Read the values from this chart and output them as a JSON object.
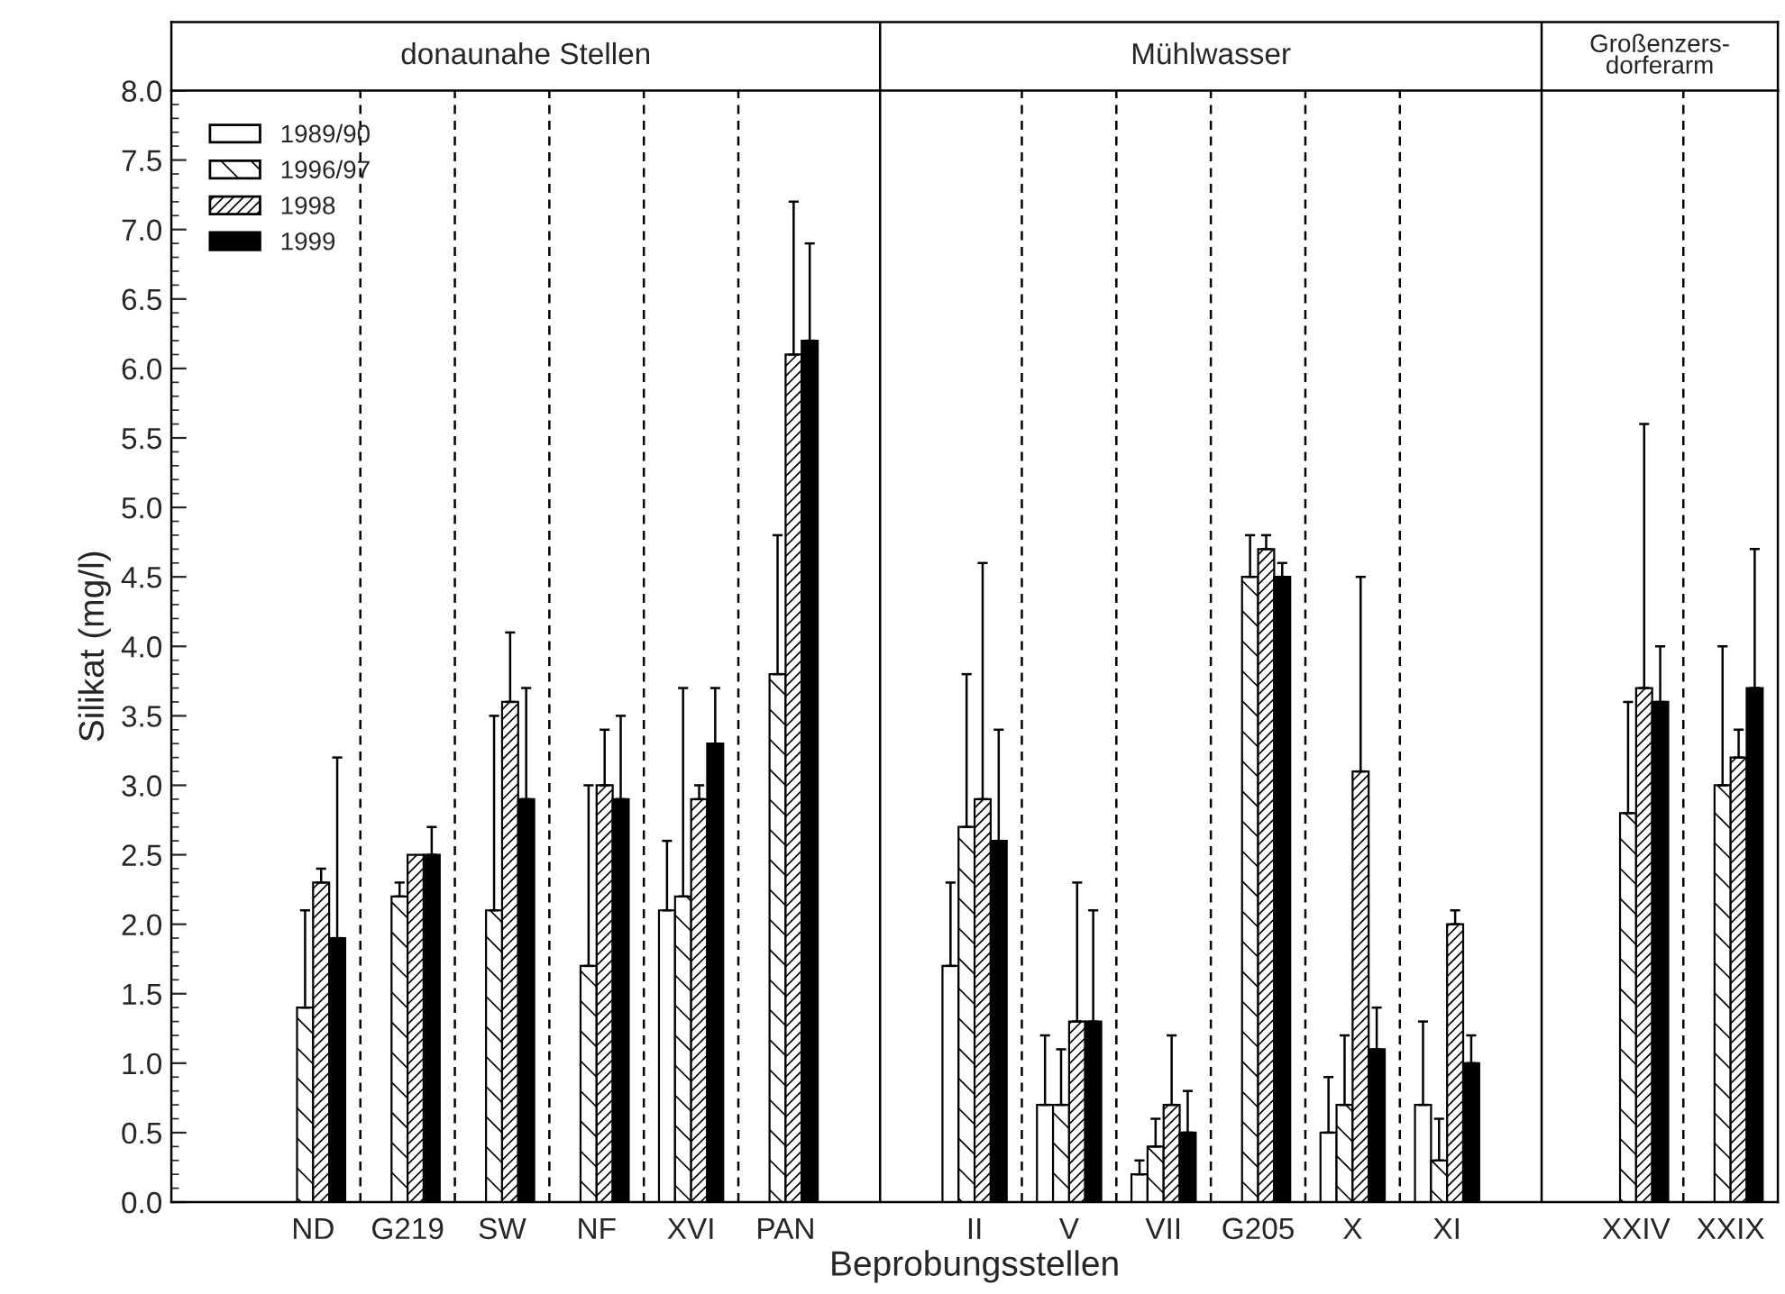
{
  "chart_data": {
    "type": "bar",
    "xlabel": "Beprobungsstellen",
    "ylabel": "Silikat (mg/l)",
    "categories": [
      null,
      "ND",
      "G219",
      "SW",
      "NF",
      "XVI",
      "PAN",
      null,
      "II",
      "V",
      "VII",
      "G205",
      "X",
      "XI",
      null,
      "XXIV",
      "XXIX"
    ],
    "series": [
      {
        "name": "1989/90",
        "color": "#ffffff",
        "values": [
          null,
          null,
          null,
          null,
          null,
          2.1,
          null,
          null,
          1.7,
          0.7,
          0.2,
          null,
          0.5,
          0.7,
          null,
          null,
          null
        ],
        "errors": [
          null,
          null,
          null,
          null,
          null,
          [
            2.1,
            2.6
          ],
          null,
          null,
          [
            1.7,
            2.3
          ],
          [
            0.7,
            1.2
          ],
          [
            0.2,
            0.3
          ],
          null,
          [
            0.5,
            0.9
          ],
          [
            0.7,
            1.3
          ],
          null,
          null,
          null
        ]
      },
      {
        "name": "1996/97",
        "color": "#ffffff",
        "values": [
          null,
          1.4,
          2.2,
          2.1,
          1.7,
          2.2,
          3.8,
          null,
          2.7,
          0.7,
          0.4,
          4.5,
          0.7,
          0.3,
          null,
          2.8,
          3.0
        ],
        "errors": [
          null,
          [
            1.4,
            2.1
          ],
          [
            2.2,
            2.3
          ],
          [
            2.1,
            3.5
          ],
          [
            1.7,
            3.0
          ],
          [
            2.2,
            3.7
          ],
          [
            3.8,
            4.8
          ],
          null,
          [
            2.7,
            3.8
          ],
          [
            0.7,
            1.1
          ],
          [
            0.4,
            0.6
          ],
          [
            4.5,
            4.8
          ],
          [
            0.7,
            1.2
          ],
          [
            0.3,
            0.6
          ],
          null,
          [
            2.8,
            3.6
          ],
          [
            3.0,
            4.0
          ]
        ]
      },
      {
        "name": "1998",
        "color": "#ffffff",
        "values": [
          null,
          2.3,
          2.5,
          3.6,
          3.0,
          2.9,
          6.1,
          null,
          2.9,
          1.3,
          0.7,
          4.7,
          3.1,
          2.0,
          null,
          3.7,
          3.2
        ],
        "errors": [
          null,
          [
            2.3,
            2.4
          ],
          null,
          [
            3.6,
            4.1
          ],
          [
            3.0,
            3.4
          ],
          [
            2.9,
            3.0
          ],
          [
            6.1,
            7.2
          ],
          null,
          [
            2.9,
            4.6
          ],
          [
            1.3,
            2.3
          ],
          [
            0.7,
            1.2
          ],
          [
            4.7,
            4.8
          ],
          [
            3.1,
            4.5
          ],
          [
            2.0,
            2.1
          ],
          null,
          [
            3.7,
            5.6
          ],
          [
            3.2,
            3.4
          ]
        ]
      },
      {
        "name": "1999",
        "color": "#000000",
        "values": [
          null,
          1.9,
          2.5,
          2.9,
          2.9,
          3.3,
          6.2,
          null,
          2.6,
          1.3,
          0.5,
          4.5,
          1.1,
          1.0,
          null,
          3.6,
          3.7
        ],
        "errors": [
          null,
          [
            1.9,
            3.2
          ],
          [
            2.5,
            2.7
          ],
          [
            2.9,
            3.7
          ],
          [
            2.9,
            3.5
          ],
          [
            3.3,
            3.7
          ],
          [
            6.2,
            6.9
          ],
          null,
          [
            2.6,
            3.4
          ],
          [
            1.3,
            2.1
          ],
          [
            0.5,
            0.8
          ],
          [
            4.5,
            4.6
          ],
          [
            1.1,
            1.4
          ],
          [
            1.0,
            1.2
          ],
          null,
          [
            3.6,
            4.0
          ],
          [
            3.7,
            4.7
          ]
        ]
      }
    ],
    "ylim": [
      0,
      8
    ],
    "yticks": [
      {
        "value": 0,
        "label": "0.0"
      },
      {
        "value": 0.5,
        "label": "0.5"
      },
      {
        "value": 1,
        "label": "1.0"
      },
      {
        "value": 1.5,
        "label": "1.5"
      },
      {
        "value": 2,
        "label": "2.0"
      },
      {
        "value": 2.5,
        "label": "2.5"
      },
      {
        "value": 3,
        "label": "3.0"
      },
      {
        "value": 3.5,
        "label": "3.5"
      },
      {
        "value": 4,
        "label": "4.0"
      },
      {
        "value": 4.5,
        "label": "4.5"
      },
      {
        "value": 5,
        "label": "5.0"
      },
      {
        "value": 5.5,
        "label": "5.5"
      },
      {
        "value": 6,
        "label": "6.0"
      },
      {
        "value": 6.5,
        "label": "6.5"
      },
      {
        "value": 7,
        "label": "7.0"
      },
      {
        "value": 7.5,
        "label": "7.5"
      },
      {
        "value": 8,
        "label": "8.0"
      }
    ],
    "annotations": [
      "donaunahe Stellen",
      "Mühlwasser",
      "Großenzers-\ndorferarm"
    ],
    "legend": "top left",
    "grid": "x"
  }
}
